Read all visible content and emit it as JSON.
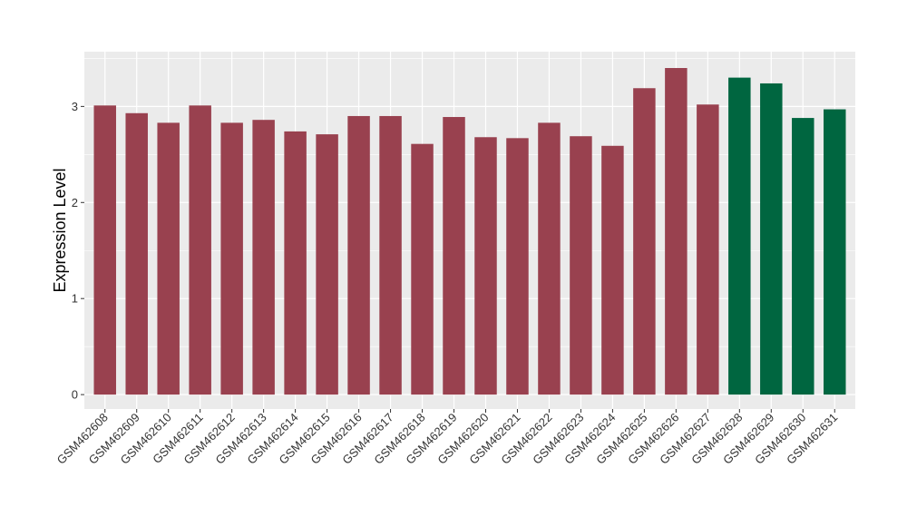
{
  "chart_data": {
    "type": "bar",
    "title": "",
    "xlabel": "",
    "ylabel": "Expression Level",
    "ylim": [
      -0.15,
      3.57
    ],
    "yticks": [
      0,
      1,
      2,
      3
    ],
    "grid": true,
    "legend": "none",
    "panel_background": "#ebebeb",
    "grid_color": "#ffffff",
    "categories": [
      "GSM462608",
      "GSM462609",
      "GSM462610",
      "GSM462611",
      "GSM462612",
      "GSM462613",
      "GSM462614",
      "GSM462615",
      "GSM462616",
      "GSM462617",
      "GSM462618",
      "GSM462619",
      "GSM462620",
      "GSM462621",
      "GSM462622",
      "GSM462623",
      "GSM462624",
      "GSM462625",
      "GSM462626",
      "GSM462627",
      "GSM462628",
      "GSM462629",
      "GSM462630",
      "GSM462631"
    ],
    "values": [
      3.01,
      2.93,
      2.83,
      3.01,
      2.83,
      2.86,
      2.74,
      2.71,
      2.9,
      2.9,
      2.61,
      2.89,
      2.68,
      2.67,
      2.83,
      2.69,
      2.59,
      3.19,
      3.4,
      3.02,
      3.3,
      3.24,
      2.88,
      2.97
    ],
    "bar_colors": [
      "#99414f",
      "#99414f",
      "#99414f",
      "#99414f",
      "#99414f",
      "#99414f",
      "#99414f",
      "#99414f",
      "#99414f",
      "#99414f",
      "#99414f",
      "#99414f",
      "#99414f",
      "#99414f",
      "#99414f",
      "#99414f",
      "#99414f",
      "#99414f",
      "#99414f",
      "#99414f",
      "#006640",
      "#006640",
      "#006640",
      "#006640"
    ]
  }
}
